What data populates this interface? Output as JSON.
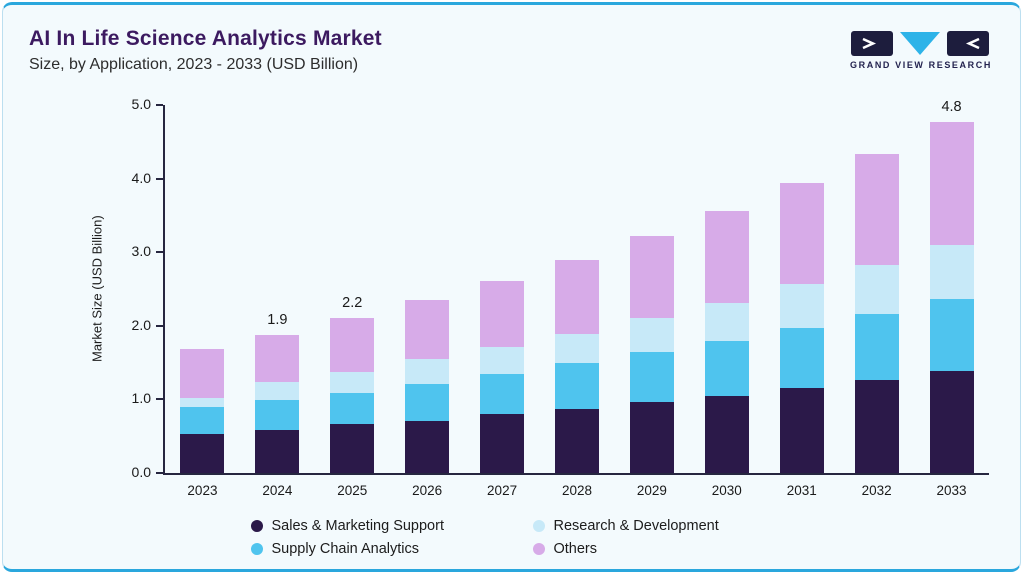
{
  "header": {
    "logo_text": "GRAND VIEW RESEARCH"
  },
  "chart_data": {
    "type": "bar",
    "stacked": true,
    "title": "AI In Life Science Analytics Market",
    "subtitle": "Size, by Application, 2023 - 2033 (USD Billion)",
    "ylabel": "Market Size (USD Billion)",
    "ylim": [
      0,
      5
    ],
    "y_ticks": [
      "0.0",
      "1.0",
      "2.0",
      "3.0",
      "4.0",
      "5.0"
    ],
    "grid": false,
    "legend_position": "bottom",
    "categories": [
      "2023",
      "2024",
      "2025",
      "2026",
      "2027",
      "2028",
      "2029",
      "2030",
      "2031",
      "2032",
      "2033"
    ],
    "series": [
      {
        "name": "Sales & Marketing Support",
        "color": "#2b1949",
        "values": [
          0.53,
          0.58,
          0.66,
          0.71,
          0.8,
          0.87,
          0.96,
          1.05,
          1.15,
          1.27,
          1.39
        ]
      },
      {
        "name": "Supply Chain Analytics",
        "color": "#4fc4ee",
        "values": [
          0.37,
          0.41,
          0.43,
          0.5,
          0.55,
          0.62,
          0.68,
          0.74,
          0.82,
          0.89,
          0.98
        ]
      },
      {
        "name": "Research & Development",
        "color": "#c7e9f8",
        "values": [
          0.12,
          0.25,
          0.28,
          0.34,
          0.36,
          0.4,
          0.46,
          0.52,
          0.6,
          0.66,
          0.73
        ]
      },
      {
        "name": "Others",
        "color": "#d7abe8",
        "values": [
          0.66,
          0.64,
          0.74,
          0.8,
          0.9,
          1.01,
          1.12,
          1.25,
          1.37,
          1.52,
          1.67
        ]
      }
    ],
    "bar_labels": [
      "",
      "1.9",
      "2.2",
      "",
      "",
      "",
      "",
      "",
      "",
      "",
      "4.8"
    ],
    "legend_order": [
      0,
      2,
      1,
      3
    ],
    "colors": {
      "accent_border": "#2aa7dd",
      "title": "#3c1a60",
      "axis": "#262640",
      "logo_triangle": "#2db3e8",
      "logo_square": "#1d1d3d"
    }
  }
}
